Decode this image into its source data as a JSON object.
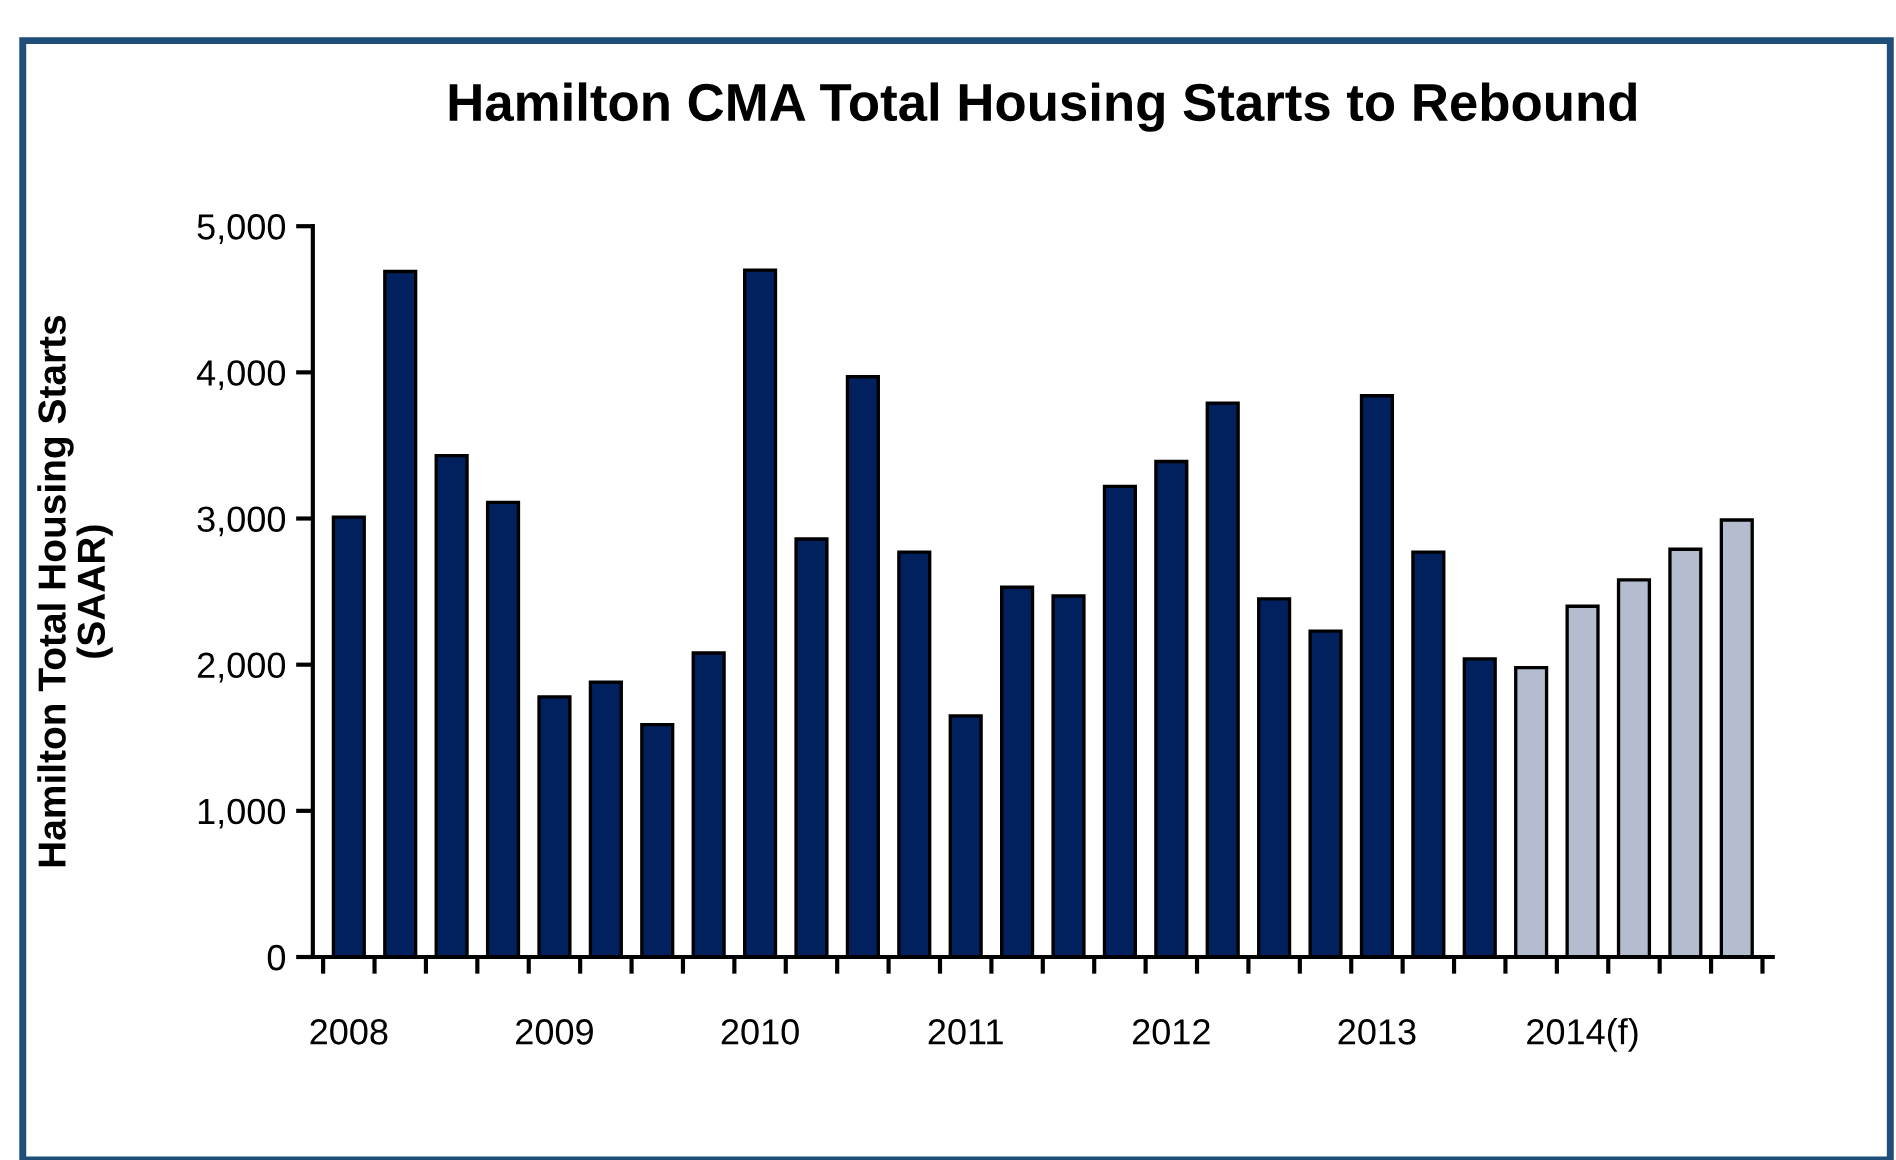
{
  "chart_data": {
    "type": "bar",
    "title": "Hamilton CMA Total Housing Starts to Rebound",
    "ylabel": "Hamilton Total Housing Starts\n(SAAR)",
    "categories": [
      "2008",
      null,
      null,
      null,
      "2009",
      null,
      null,
      null,
      "2010",
      null,
      null,
      null,
      "2011",
      null,
      null,
      null,
      "2012",
      null,
      null,
      null,
      "2013",
      null,
      null,
      null,
      "2014(f)",
      null,
      null,
      null
    ],
    "values": [
      3010,
      4690,
      3430,
      3110,
      1780,
      1880,
      1590,
      2080,
      4700,
      2860,
      3970,
      2770,
      1650,
      2530,
      2470,
      3220,
      3390,
      3790,
      2450,
      2230,
      3840,
      2770,
      2040,
      1980,
      2400,
      2580,
      2790,
      2990
    ],
    "colors": [
      "#01205e",
      "#01205e",
      "#01205e",
      "#01205e",
      "#01205e",
      "#01205e",
      "#01205e",
      "#01205e",
      "#01205e",
      "#01205e",
      "#01205e",
      "#01205e",
      "#01205e",
      "#01205e",
      "#01205e",
      "#01205e",
      "#01205e",
      "#01205e",
      "#01205e",
      "#01205e",
      "#01205e",
      "#01205e",
      "#01205e",
      "#b4bccf",
      "#b4bccf",
      "#b4bccf",
      "#b4bccf",
      "#b4bccf"
    ],
    "ylim": [
      0,
      5000
    ],
    "yticks": [
      {
        "value": 0,
        "label": "0"
      },
      {
        "value": 1000,
        "label": "1,000"
      },
      {
        "value": 2000,
        "label": "2,000"
      },
      {
        "value": 3000,
        "label": "3,000"
      },
      {
        "value": 4000,
        "label": "4,000"
      },
      {
        "value": 5000,
        "label": "5,000"
      }
    ],
    "grid": false,
    "legend": false
  }
}
